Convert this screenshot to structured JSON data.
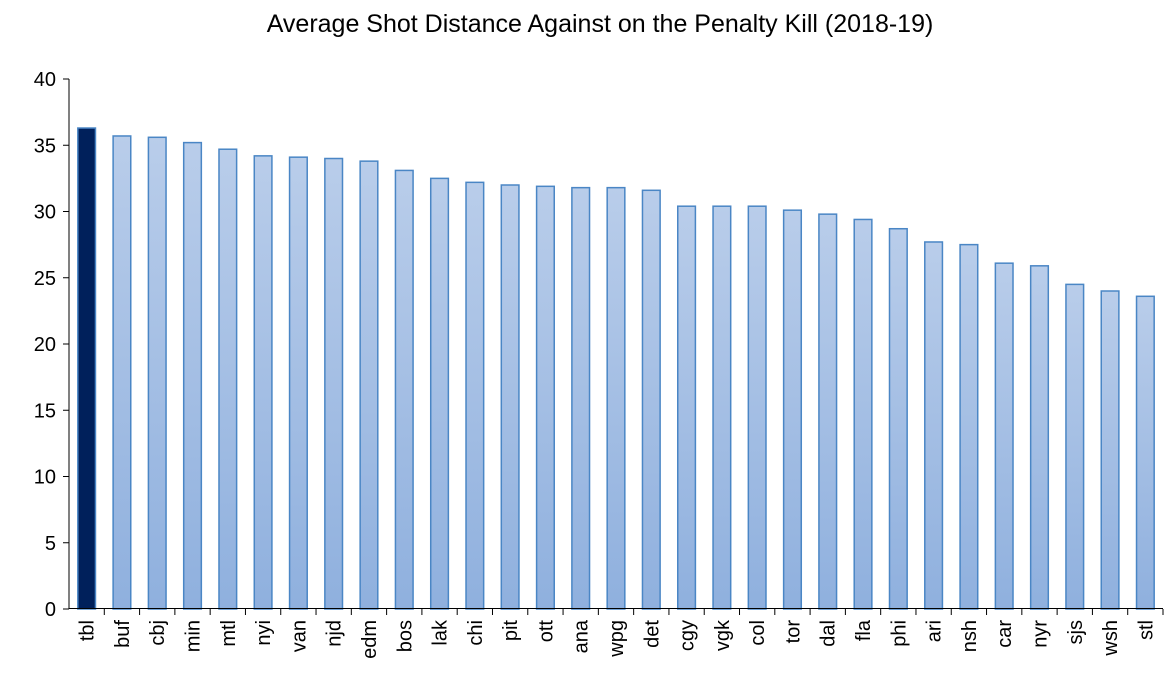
{
  "chart_data": {
    "type": "bar",
    "title": "Average Shot Distance Against on the Penalty Kill (2018-19)",
    "xlabel": "",
    "ylabel": "",
    "ylim": [
      0,
      40
    ],
    "yticks": [
      0,
      5,
      10,
      15,
      20,
      25,
      30,
      35,
      40
    ],
    "grid": false,
    "categories": [
      "tbl",
      "buf",
      "cbj",
      "min",
      "mtl",
      "nyi",
      "van",
      "njd",
      "edm",
      "bos",
      "lak",
      "chi",
      "pit",
      "ott",
      "ana",
      "wpg",
      "det",
      "cgy",
      "vgk",
      "col",
      "tor",
      "dal",
      "fla",
      "phi",
      "ari",
      "nsh",
      "car",
      "nyr",
      "sjs",
      "wsh",
      "stl"
    ],
    "values": [
      36.3,
      35.7,
      35.6,
      35.2,
      34.7,
      34.2,
      34.1,
      34.0,
      33.8,
      33.1,
      32.5,
      32.2,
      32.0,
      31.9,
      31.8,
      31.8,
      31.6,
      30.4,
      30.4,
      30.4,
      30.1,
      29.8,
      29.4,
      28.7,
      27.7,
      27.5,
      26.1,
      25.9,
      24.5,
      24.0,
      23.6
    ],
    "highlight_category": "tbl",
    "colors": {
      "highlight_fill": "#00205b",
      "bar_fill_top": "#b9cdea",
      "bar_fill_bottom": "#8fb0de",
      "bar_stroke": "#4a86c5",
      "axis": "#000000"
    }
  }
}
